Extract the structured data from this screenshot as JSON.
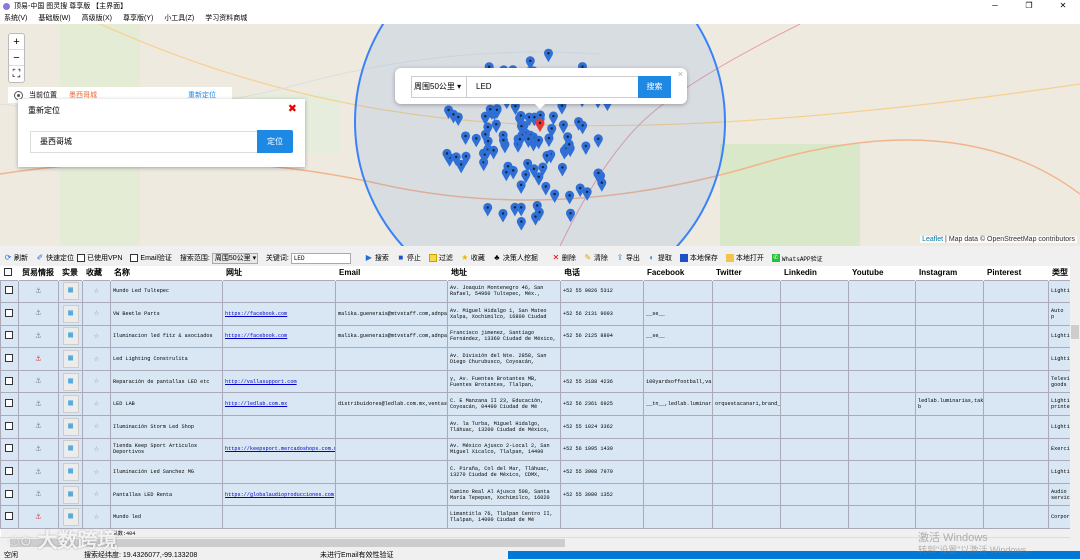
{
  "window": {
    "title": "顶易-中国 图灵搜 尊享版 【主界面】",
    "controls": [
      "─",
      "❐",
      "✕"
    ]
  },
  "menu": [
    "系统(V)",
    "基础版(W)",
    "高级版(X)",
    "尊享版(Y)",
    "小工具(Z)",
    "学习资料商城"
  ],
  "map": {
    "zoom_in": "+",
    "zoom_out": "−",
    "fullscreen": "⛶",
    "current_location_label": "当前位置",
    "current_location_value": "墨西哥城",
    "relocate_link": "重新定位",
    "relocate_panel": {
      "title": "重新定位",
      "input_value": "墨西哥城",
      "button": "定位",
      "close": "✖"
    },
    "search_popup": {
      "range": "周围50公里",
      "keyword": "LED",
      "button": "搜索",
      "close": "×"
    },
    "attribution_leaflet": "Leaflet",
    "attribution_text": " | Map data © OpenStreetMap contributors",
    "colors": {
      "circle": "#3b82f6",
      "pin": "#2f6fd6",
      "selected_pin": "#e53935"
    }
  },
  "toolbar": {
    "refresh": "刷新",
    "quick_locate": "快速定位",
    "vpn": "已使用VPN",
    "email_verify": "Email验证",
    "range_label": "搜索范围:",
    "range_value": "周围50公里",
    "keyword_label": "关键词:",
    "keyword_value": "LED",
    "search": "搜索",
    "stop": "停止",
    "filter": "过滤",
    "favorite": "收藏",
    "decision_maker": "决策人挖掘",
    "delete": "删除",
    "clear": "清除",
    "export": "导出",
    "extract": "提取",
    "save_local": "本地保存",
    "open_local": "本地打开",
    "whatsapp": "WhatsAPP验证"
  },
  "table": {
    "columns": [
      "贸易情报",
      "实景",
      "收藏",
      "名称",
      "网址",
      "Email",
      "地址",
      "电话",
      "Facebook",
      "Twitter",
      "Linkedin",
      "Youtube",
      "Instagram",
      "Pinterest",
      "类型"
    ],
    "rows": [
      {
        "anchor_red": false,
        "name": "Mundo Led Tultepec",
        "url": "",
        "email": "",
        "address": "Av. Joaquín Montenegro 46, San Rafael, 54960 Tultepec, Méx.,",
        "phone": "+52 55 9026 5312",
        "facebook": "",
        "twitter": "",
        "linkedin": "",
        "youtube": "",
        "instagram": "",
        "pinterest": "",
        "type": "Lighti"
      },
      {
        "anchor_red": false,
        "name": "VW Beetle Parts",
        "url": "https://facebook.com",
        "email": "malika.guenerais@mtvstaff.com,adnpatt99@gmail.com,info@nome.com,",
        "address": "Av. Miguel Hidalgo 1, San Mateo Xalpa, Xochimilco, 16800 Ciudad",
        "phone": "+52 56 2131 9093",
        "facebook": "__se__",
        "twitter": "",
        "linkedin": "",
        "youtube": "",
        "instagram": "",
        "pinterest": "",
        "type": "Auto p"
      },
      {
        "anchor_red": false,
        "name": "Iluminacion led fitz & asociados",
        "url": "https://facebook.com",
        "email": "malika.guenerais@mtvstaff.com,adnpatt99@gmail.com,info@nome.com,",
        "address": "Francisco jimenez, Santiago Fernández, 13360 Ciudad de México,",
        "phone": "+52 56 2125 8894",
        "facebook": "__se__",
        "twitter": "",
        "linkedin": "",
        "youtube": "",
        "instagram": "",
        "pinterest": "",
        "type": "Lighti"
      },
      {
        "anchor_red": true,
        "name": "Led Lighting Construlita",
        "url": "",
        "email": "",
        "address": "Av. División del Nte. 2858, San Diego Churubusco, Coyoacán,",
        "phone": "",
        "facebook": "",
        "twitter": "",
        "linkedin": "",
        "youtube": "",
        "instagram": "",
        "pinterest": "",
        "type": "Lighti"
      },
      {
        "anchor_red": false,
        "name": "Reparación de pantallas LED etc",
        "url": "http://vallasupport.com",
        "email": "",
        "address": "y, Av. Fuentes Brotantes MB, Fuentes Brotantes, Tlalpan,",
        "phone": "+52 55 3188 4236",
        "facebook": "100yardsoffootball,vallasupport,videos",
        "twitter": "",
        "linkedin": "",
        "youtube": "",
        "instagram": "",
        "pinterest": "",
        "type": "Televi goods"
      },
      {
        "anchor_red": false,
        "name": "LED LAB",
        "url": "http://ledlab.com.mx",
        "email": "distribuidores@ledlab.com.mx,ventas@ledlab.com.mx",
        "address": "C. E Manzana II 23, Educación, Coyoacán, 04400 Ciudad de Mé",
        "phone": "+52 56 2361 6925",
        "facebook": "__tn__,ledlab.luminarias,jan.karpiel.1",
        "twitter": "orquestacanari,brand_presence",
        "linkedin": "",
        "youtube": "",
        "instagram": "ledlab.luminarias,taken-b",
        "pinterest": "",
        "type": "Lighti printe"
      },
      {
        "anchor_red": false,
        "name": "Iluminación Storm Led Shop",
        "url": "",
        "email": "",
        "address": "Av. la Turba, Miguel Hidalgo, Tláhuac, 13200 Ciudad de México,",
        "phone": "+52 55 1024 3362",
        "facebook": "",
        "twitter": "",
        "linkedin": "",
        "youtube": "",
        "instagram": "",
        "pinterest": "",
        "type": "Lighti"
      },
      {
        "anchor_red": false,
        "name": "Tienda Keep Sport Articulos Deportivos",
        "url": "https://keepsport.mercadoshops.com.mx",
        "email": "",
        "address": "Av. México Ajusco 2-Local 2, San Miguel Xicalco, Tlalpan, 14490",
        "phone": "+52 56 1995 1439",
        "facebook": "",
        "twitter": "",
        "linkedin": "",
        "youtube": "",
        "instagram": "",
        "pinterest": "",
        "type": "Exerci"
      },
      {
        "anchor_red": false,
        "name": "Iluminación Led Sanchez MG",
        "url": "",
        "email": "",
        "address": "C. Piraña, Col del Mar, Tláhuac, 13270 Ciudad de México, CDMX,",
        "phone": "+52 55 3908 7970",
        "facebook": "",
        "twitter": "",
        "linkedin": "",
        "youtube": "",
        "instagram": "",
        "pinterest": "",
        "type": "Lighti"
      },
      {
        "anchor_red": false,
        "name": "Pantallas LED Renta",
        "url": "https://globalaudioproducciones.com",
        "email": "",
        "address": "Camino Real Al Ajusco 508, Santa María Tepepan, Xochimilco, 16020",
        "phone": "+52 55 3080 1352",
        "facebook": "",
        "twitter": "",
        "linkedin": "",
        "youtube": "",
        "instagram": "",
        "pinterest": "",
        "type": "Audio servic"
      },
      {
        "anchor_red": true,
        "name": "Mundo led",
        "url": "",
        "email": "",
        "address": "Limantitla 76, Tlalpan Centro II, Tlalpan, 14000 Ciudad de Mé",
        "phone": "",
        "facebook": "",
        "twitter": "",
        "linkedin": "",
        "youtube": "",
        "instagram": "",
        "pinterest": "",
        "type": "Corpor"
      }
    ],
    "summary": "总数:404"
  },
  "status": {
    "state": "空闲",
    "coords": "搜索经纬度: 19.4326077,-99.133208",
    "email_status": "未进行Email有效性验证",
    "progress": 100
  },
  "watermark": "大数跨境",
  "windows_activation": {
    "line1": "激活 Windows",
    "line2": "转到\"设置\"以激活 Windows。"
  }
}
